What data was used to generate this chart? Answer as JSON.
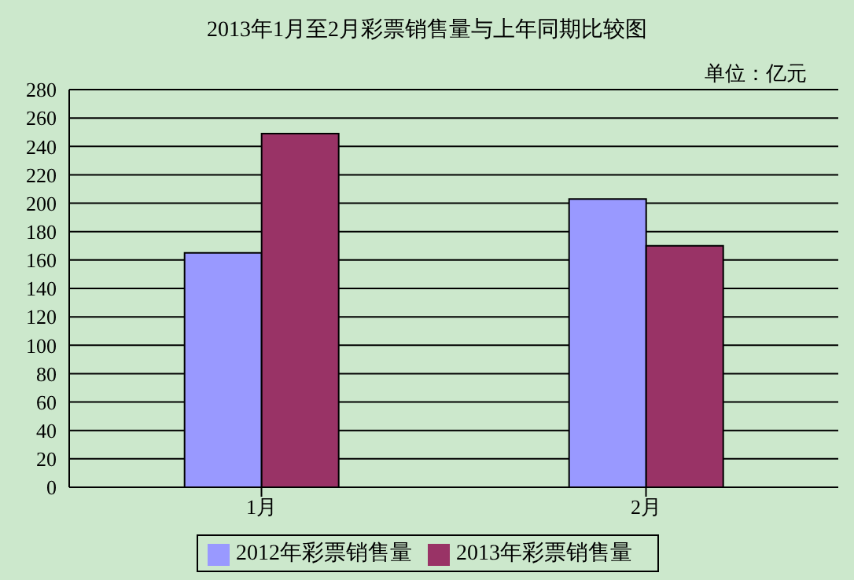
{
  "chart_data": {
    "type": "bar",
    "title": "2013年1月至2月彩票销售量与上年同期比较图",
    "annotations": [
      "单位：亿元"
    ],
    "categories": [
      "1月",
      "2月"
    ],
    "series": [
      {
        "name": "2012年彩票销售量",
        "color": "#9999ff",
        "values": [
          165,
          203
        ]
      },
      {
        "name": "2013年彩票销售量",
        "color": "#993366",
        "values": [
          249,
          170
        ]
      }
    ],
    "ylim": [
      0,
      280
    ],
    "yticks": [
      0,
      20,
      40,
      60,
      80,
      100,
      120,
      140,
      160,
      180,
      200,
      220,
      240,
      260,
      280
    ],
    "grid": "y",
    "legend": "bottom"
  }
}
